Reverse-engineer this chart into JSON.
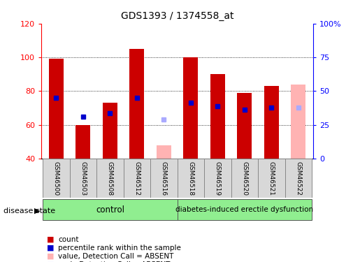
{
  "title": "GDS1393 / 1374558_at",
  "samples": [
    "GSM46500",
    "GSM46503",
    "GSM46508",
    "GSM46512",
    "GSM46516",
    "GSM46518",
    "GSM46519",
    "GSM46520",
    "GSM46521",
    "GSM46522"
  ],
  "count_values": [
    99,
    60,
    73,
    105,
    null,
    100,
    90,
    79,
    83,
    null
  ],
  "count_absent": [
    null,
    null,
    null,
    null,
    48,
    null,
    null,
    null,
    null,
    84
  ],
  "rank_values": [
    76,
    65,
    67,
    76,
    null,
    73,
    71,
    69,
    70,
    null
  ],
  "rank_absent": [
    null,
    null,
    null,
    null,
    63,
    null,
    null,
    null,
    null,
    70
  ],
  "ylim_left": [
    40,
    120
  ],
  "ylim_right": [
    0,
    100
  ],
  "yticks_left": [
    40,
    60,
    80,
    100,
    120
  ],
  "yticks_right": [
    0,
    25,
    50,
    75,
    100
  ],
  "ytick_labels_right": [
    "0",
    "25",
    "50",
    "75",
    "100%"
  ],
  "bar_color_present": "#cc0000",
  "bar_color_absent": "#ffb3b3",
  "dot_color_present": "#0000cc",
  "dot_color_absent": "#aaaaff",
  "control_bg": "#90ee90",
  "disease_bg": "#90ee90",
  "bar_width": 0.55,
  "disease_label": "diabetes-induced erectile dysfunction",
  "control_label": "control",
  "disease_state_label": "disease state"
}
